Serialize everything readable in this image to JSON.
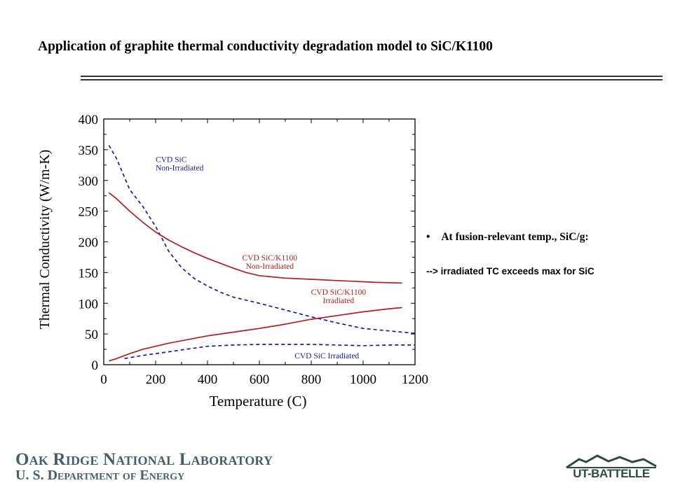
{
  "slide": {
    "title": "Application of graphite thermal conductivity degradation model to SiC/K1100",
    "bullet": "• \u0000At fusion-relevant temp., SiC/g:",
    "sub_bullet": "--> irradiated TC exceeds max for SiC",
    "footer_line1": "Oak Ridge National Laboratory",
    "footer_line2": "U. S. Department of Energy",
    "logo_text": "UT-BATTELLE"
  },
  "colors": {
    "red_series": "#b01e1e",
    "blue_series": "#1a1a9e",
    "footer": "#455e6a",
    "logo": "#2e4a44"
  },
  "chart_data": {
    "type": "line",
    "title": "",
    "xlabel": "Temperature (C)",
    "ylabel": "Thermal Conductivity (W/m-K)",
    "xlim": [
      0,
      1200
    ],
    "ylim": [
      0,
      400
    ],
    "xticks": [
      0,
      200,
      400,
      600,
      800,
      1000,
      1200
    ],
    "yticks": [
      0,
      50,
      100,
      150,
      200,
      250,
      300,
      350,
      400
    ],
    "grid": false,
    "series": [
      {
        "name": "CVD SiC Non-Irradiated",
        "color": "#1a1a9e",
        "dash": true,
        "x": [
          20,
          50,
          80,
          100,
          150,
          200,
          250,
          300,
          350,
          400,
          450,
          500,
          550,
          600,
          700,
          800,
          900,
          1000,
          1100,
          1200
        ],
        "y": [
          357,
          335,
          305,
          285,
          258,
          225,
          185,
          158,
          140,
          128,
          118,
          110,
          105,
          100,
          89,
          78,
          68,
          59,
          55,
          51
        ]
      },
      {
        "name": "CVD SiC/K1100 Non-Irradiated",
        "color": "#b01e1e",
        "dash": false,
        "x": [
          20,
          50,
          100,
          150,
          200,
          250,
          300,
          350,
          400,
          450,
          500,
          550,
          600,
          700,
          800,
          900,
          1000,
          1050,
          1150
        ],
        "y": [
          280,
          270,
          250,
          232,
          216,
          203,
          192,
          182,
          173,
          165,
          157,
          150,
          145,
          141,
          139,
          137,
          135,
          134,
          133
        ]
      },
      {
        "name": "CVD SiC/K1100 Irradiated",
        "color": "#b01e1e",
        "dash": false,
        "x": [
          20,
          50,
          100,
          150,
          200,
          250,
          300,
          350,
          400,
          450,
          500,
          550,
          600,
          700,
          800,
          900,
          1000,
          1100,
          1150
        ],
        "y": [
          6,
          10,
          18,
          25,
          30,
          35,
          39,
          43,
          47,
          50,
          53,
          56,
          59,
          66,
          74,
          80,
          86,
          91,
          93
        ]
      },
      {
        "name": "CVD SiC Irradiated",
        "color": "#1a1a9e",
        "dash": true,
        "x": [
          80,
          150,
          200,
          250,
          300,
          350,
          400,
          450,
          500,
          600,
          700,
          800,
          900,
          1000,
          1100,
          1200
        ],
        "y": [
          10,
          15,
          18,
          21,
          24,
          27,
          30,
          31,
          32,
          33,
          33,
          33,
          32,
          31,
          32,
          32
        ]
      }
    ],
    "annotations": [
      {
        "lines": [
          "CVD SiC",
          "Non-Irradiated"
        ],
        "color": "#1a1a9e",
        "x": 200,
        "y": 330,
        "anchor": "start"
      },
      {
        "lines": [
          "CVD SiC/K1100",
          "Non-Irradiated"
        ],
        "color": "#b01e1e",
        "x": 640,
        "y": 170,
        "anchor": "middle"
      },
      {
        "lines": [
          "CVD SiC/K1100",
          "Irradiated"
        ],
        "color": "#b01e1e",
        "x": 905,
        "y": 114,
        "anchor": "middle"
      },
      {
        "lines": [
          "CVD SiC Irradiated"
        ],
        "color": "#1a1a9e",
        "x": 860,
        "y": 10,
        "anchor": "middle"
      }
    ]
  }
}
